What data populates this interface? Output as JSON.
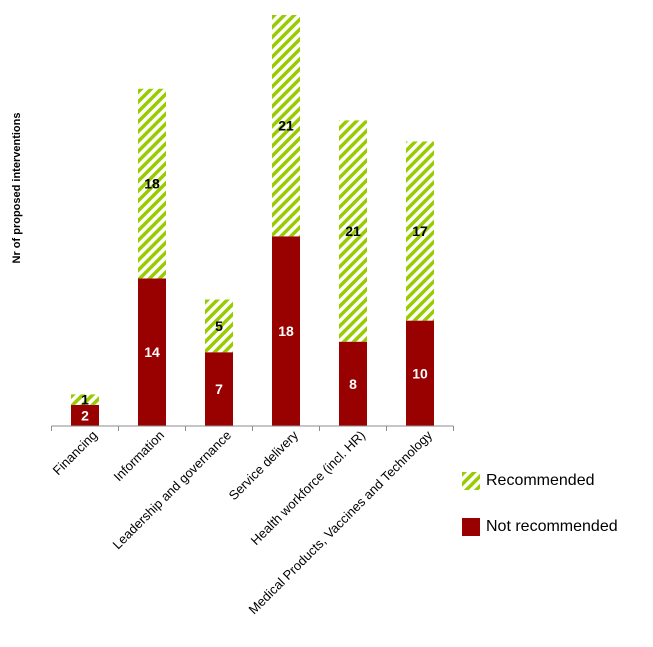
{
  "chart_data": {
    "type": "bar",
    "stacked": true,
    "title": "",
    "xlabel": "",
    "ylabel": "Nr of proposed interventions",
    "ylim": [
      0,
      39
    ],
    "grid": false,
    "legend_position": "bottom-right",
    "categories": [
      "Financing",
      "Information",
      "Leadership and governance",
      "Service delivery",
      "Health workforce (incl. HR)",
      "Medical Products, Vaccines and Technology"
    ],
    "series": [
      {
        "name": "Not recommended",
        "values": [
          2,
          14,
          7,
          18,
          8,
          10
        ],
        "color": "#990000",
        "pattern": "solid"
      },
      {
        "name": "Recommended",
        "values": [
          1,
          18,
          5,
          21,
          21,
          17
        ],
        "color": "#99cc00",
        "pattern": "diagonal-stripes"
      }
    ]
  }
}
